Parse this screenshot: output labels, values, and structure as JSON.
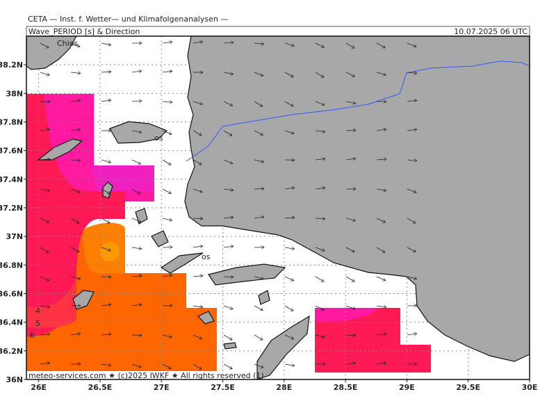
{
  "header": {
    "institute": "CETA — Inst. f. Wetter— und Klimafolgenanalysen —",
    "title": "Wave_PERIOD [s] & Direction",
    "date": "10.07.2025 06 UTC"
  },
  "map": {
    "lon_ticks": [
      {
        "value": 26,
        "label": "26E"
      },
      {
        "value": 26.5,
        "label": "26.5E"
      },
      {
        "value": 27,
        "label": "27E"
      },
      {
        "value": 27.5,
        "label": "27.5E"
      },
      {
        "value": 28,
        "label": "28E"
      },
      {
        "value": 28.5,
        "label": "28.5E"
      },
      {
        "value": 29,
        "label": "29E"
      },
      {
        "value": 29.5,
        "label": "29.5E"
      },
      {
        "value": 30,
        "label": "30E"
      }
    ],
    "lat_ticks": [
      {
        "value": 36,
        "label": "36N"
      },
      {
        "value": 36.2,
        "label": "36.2N"
      },
      {
        "value": 36.4,
        "label": "36.4N"
      },
      {
        "value": 36.6,
        "label": "36.6N"
      },
      {
        "value": 36.8,
        "label": "36.8N"
      },
      {
        "value": 37,
        "label": "37N"
      },
      {
        "value": 37.2,
        "label": "37.2N"
      },
      {
        "value": 37.4,
        "label": "37.4N"
      },
      {
        "value": 37.6,
        "label": "37.6N"
      },
      {
        "value": 37.8,
        "label": "37.8N"
      },
      {
        "value": 38,
        "label": "38N"
      },
      {
        "value": 38.2,
        "label": "38.2N"
      }
    ],
    "places": [
      "Chios",
      "os",
      "os"
    ],
    "contour_labels": [
      "4",
      "5",
      "6"
    ],
    "copyright": "meteo-services.com ★ (c)2025 IWKF ★ All rights reserved (1)"
  }
}
